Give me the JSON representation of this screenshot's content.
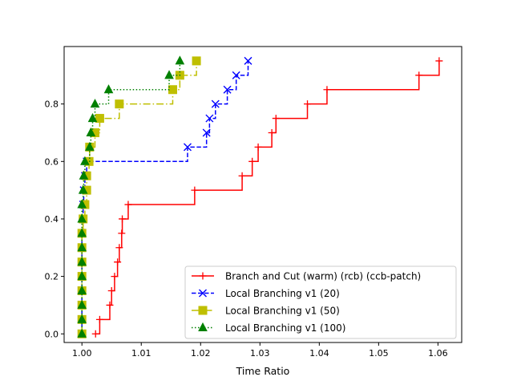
{
  "chart_data": {
    "type": "line",
    "step": "post",
    "title": "",
    "xlabel": "Time Ratio",
    "ylabel": "",
    "xlim": [
      0.997,
      1.064
    ],
    "ylim": [
      -0.03,
      1.0
    ],
    "xticks": [
      1.0,
      1.01,
      1.02,
      1.03,
      1.04,
      1.05,
      1.06
    ],
    "xtick_labels": [
      "1.00",
      "1.01",
      "1.02",
      "1.03",
      "1.04",
      "1.05",
      "1.06"
    ],
    "yticks": [
      0.0,
      0.2,
      0.4,
      0.6,
      0.8
    ],
    "ytick_labels": [
      "0.0",
      "0.2",
      "0.4",
      "0.6",
      "0.8"
    ],
    "grid": false,
    "legend_position": "lower-right",
    "series": [
      {
        "name": "Branch and Cut (warm) (rcb) (ccb-patch)",
        "color": "#ff0000",
        "line_style": "solid",
        "marker": "plus",
        "points": [
          [
            1.0023,
            0.0
          ],
          [
            1.003,
            0.05
          ],
          [
            1.0047,
            0.1
          ],
          [
            1.005,
            0.15
          ],
          [
            1.0055,
            0.2
          ],
          [
            1.006,
            0.25
          ],
          [
            1.0063,
            0.3
          ],
          [
            1.0067,
            0.35
          ],
          [
            1.0068,
            0.4
          ],
          [
            1.0078,
            0.45
          ],
          [
            1.019,
            0.5
          ],
          [
            1.027,
            0.55
          ],
          [
            1.0287,
            0.6
          ],
          [
            1.0297,
            0.65
          ],
          [
            1.032,
            0.7
          ],
          [
            1.0327,
            0.75
          ],
          [
            1.038,
            0.8
          ],
          [
            1.0413,
            0.85
          ],
          [
            1.0568,
            0.9
          ],
          [
            1.0602,
            0.95
          ]
        ]
      },
      {
        "name": "Local Branching v1 (20)",
        "color": "#0000ff",
        "line_style": "dashed",
        "marker": "x",
        "points": [
          [
            1.0,
            0.0
          ],
          [
            1.0,
            0.05
          ],
          [
            1.0,
            0.1
          ],
          [
            1.0,
            0.15
          ],
          [
            1.0,
            0.2
          ],
          [
            1.0,
            0.25
          ],
          [
            1.0,
            0.3
          ],
          [
            1.0,
            0.35
          ],
          [
            1.0002,
            0.4
          ],
          [
            1.0002,
            0.45
          ],
          [
            1.0003,
            0.5
          ],
          [
            1.0005,
            0.55
          ],
          [
            1.0008,
            0.6
          ],
          [
            1.0178,
            0.65
          ],
          [
            1.021,
            0.7
          ],
          [
            1.0215,
            0.75
          ],
          [
            1.0225,
            0.8
          ],
          [
            1.0245,
            0.85
          ],
          [
            1.026,
            0.9
          ],
          [
            1.028,
            0.95
          ]
        ]
      },
      {
        "name": "Local Branching v1 (50)",
        "color": "#bfbf00",
        "line_style": "dashdot",
        "marker": "square",
        "points": [
          [
            1.0,
            0.0
          ],
          [
            1.0,
            0.05
          ],
          [
            1.0,
            0.1
          ],
          [
            1.0,
            0.15
          ],
          [
            1.0,
            0.2
          ],
          [
            1.0,
            0.25
          ],
          [
            1.0,
            0.3
          ],
          [
            1.0,
            0.35
          ],
          [
            1.0002,
            0.4
          ],
          [
            1.0005,
            0.45
          ],
          [
            1.0008,
            0.5
          ],
          [
            1.0008,
            0.55
          ],
          [
            1.0012,
            0.6
          ],
          [
            1.0013,
            0.65
          ],
          [
            1.0022,
            0.7
          ],
          [
            1.003,
            0.75
          ],
          [
            1.0063,
            0.8
          ],
          [
            1.0153,
            0.85
          ],
          [
            1.0165,
            0.9
          ],
          [
            1.0193,
            0.95
          ]
        ]
      },
      {
        "name": "Local Branching v1 (100)",
        "color": "#008000",
        "line_style": "dotted",
        "marker": "triangle",
        "points": [
          [
            1.0,
            0.0
          ],
          [
            1.0,
            0.05
          ],
          [
            1.0,
            0.1
          ],
          [
            1.0,
            0.15
          ],
          [
            1.0,
            0.2
          ],
          [
            1.0,
            0.25
          ],
          [
            1.0,
            0.3
          ],
          [
            1.0,
            0.35
          ],
          [
            1.0,
            0.4
          ],
          [
            1.0,
            0.45
          ],
          [
            1.0002,
            0.5
          ],
          [
            1.0003,
            0.55
          ],
          [
            1.0005,
            0.6
          ],
          [
            1.0013,
            0.65
          ],
          [
            1.0015,
            0.7
          ],
          [
            1.0018,
            0.75
          ],
          [
            1.0022,
            0.8
          ],
          [
            1.0045,
            0.85
          ],
          [
            1.0147,
            0.9
          ],
          [
            1.0165,
            0.95
          ]
        ]
      }
    ]
  }
}
